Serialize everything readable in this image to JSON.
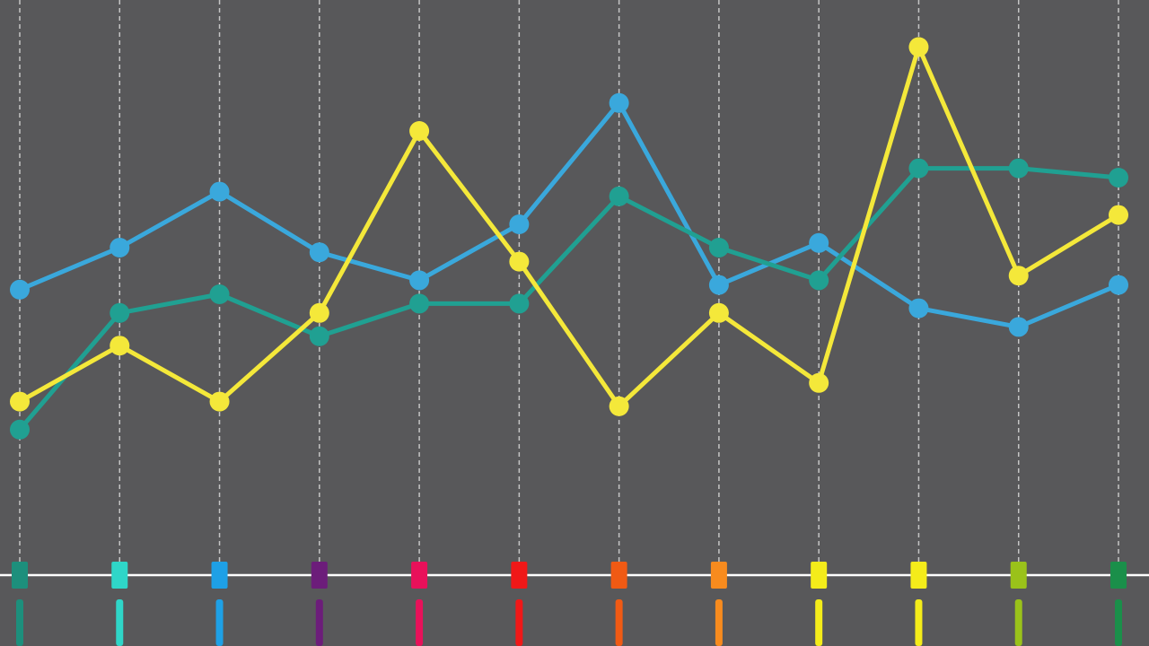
{
  "colors": {
    "background": "#58585a",
    "gridline": "#d8d8d8",
    "baseline": "#ffffff"
  },
  "chart_data": {
    "type": "line",
    "title": "",
    "xlabel": "",
    "ylabel": "",
    "x": [
      1,
      2,
      3,
      4,
      5,
      6,
      7,
      8,
      9,
      10,
      11,
      12
    ],
    "ylim": [
      0,
      100
    ],
    "grid": {
      "vertical": true,
      "style": "dashed"
    },
    "legend": "none",
    "category_markers": [
      "#1d8f7c",
      "#2fd6c8",
      "#1ea0e6",
      "#6c1d7a",
      "#e8115a",
      "#f01818",
      "#f05a14",
      "#f78b1e",
      "#f4ec1a",
      "#f4ec1a",
      "#9ac21a",
      "#1a8f4a"
    ],
    "series": [
      {
        "color": "#3aa8dc",
        "values": [
          46,
          55,
          67,
          54,
          48,
          60,
          86,
          47,
          56,
          42,
          38,
          47
        ]
      },
      {
        "color": "#20a092",
        "values": [
          16,
          41,
          45,
          36,
          43,
          43,
          66,
          55,
          48,
          72,
          72,
          70
        ]
      },
      {
        "color": "#f4e83a",
        "values": [
          22,
          34,
          22,
          41,
          80,
          52,
          21,
          41,
          26,
          98,
          49,
          62
        ]
      }
    ]
  }
}
